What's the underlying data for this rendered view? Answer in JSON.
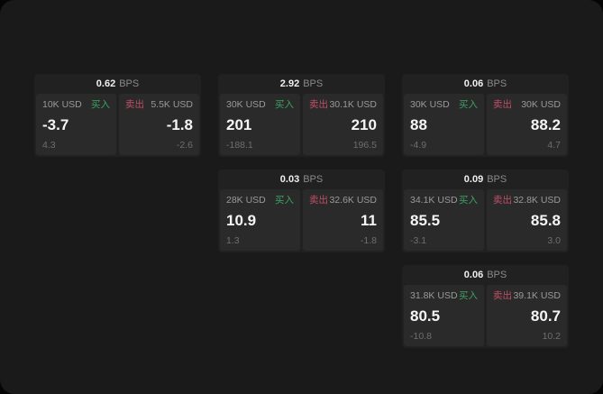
{
  "labels": {
    "bps_unit": "BPS",
    "buy": "买入",
    "sell": "卖出"
  },
  "colors": {
    "page_background": "#1a1a1a",
    "card_background": "#212121",
    "panel_background": "#2a2a2a",
    "buy_accent": "#3ba263",
    "sell_accent": "#c04f66",
    "price_text": "#f5f5f5",
    "label_text": "#9a9a9a",
    "sub_text": "#6e6e6e"
  },
  "cards": [
    {
      "bps": "0.62",
      "buy": {
        "notional": "10K USD",
        "price": "-3.7",
        "sub": "4.3"
      },
      "sell": {
        "notional": "5.5K USD",
        "price": "-1.8",
        "sub": "-2.6"
      }
    },
    {
      "bps": "2.92",
      "buy": {
        "notional": "30K USD",
        "price": "201",
        "sub": "-188.1"
      },
      "sell": {
        "notional": "30.1K USD",
        "price": "210",
        "sub": "196.5"
      }
    },
    {
      "bps": "0.06",
      "buy": {
        "notional": "30K USD",
        "price": "88",
        "sub": "-4.9"
      },
      "sell": {
        "notional": "30K USD",
        "price": "88.2",
        "sub": "4.7"
      }
    },
    {
      "bps": "0.03",
      "buy": {
        "notional": "28K USD",
        "price": "10.9",
        "sub": "1.3"
      },
      "sell": {
        "notional": "32.6K USD",
        "price": "11",
        "sub": "-1.8"
      }
    },
    {
      "bps": "0.09",
      "buy": {
        "notional": "34.1K USD",
        "price": "85.5",
        "sub": "-3.1"
      },
      "sell": {
        "notional": "32.8K USD",
        "price": "85.8",
        "sub": "3.0"
      }
    },
    {
      "bps": "0.06",
      "buy": {
        "notional": "31.8K USD",
        "price": "80.5",
        "sub": "-10.8"
      },
      "sell": {
        "notional": "39.1K USD",
        "price": "80.7",
        "sub": "10.2"
      }
    }
  ]
}
